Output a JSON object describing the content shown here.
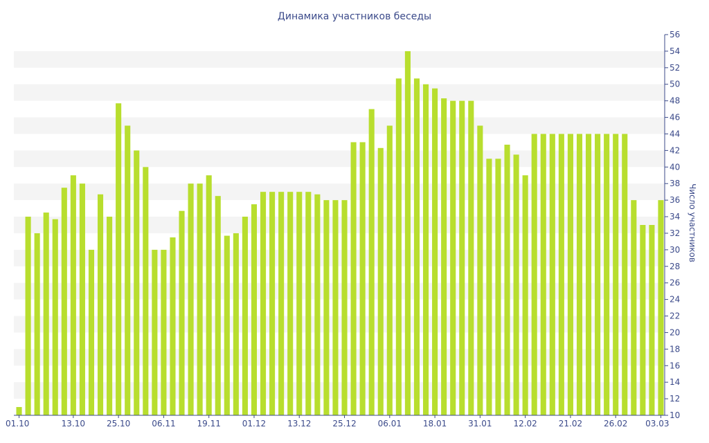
{
  "colors": {
    "bar": "#b8de2e",
    "band": "#f4f4f4",
    "text": "#3b4a8a",
    "axis": "#3b4a8a"
  },
  "chart_data": {
    "type": "bar",
    "title": "Динамика участников беседы",
    "xlabel": "",
    "ylabel": "Число участников",
    "ylim": [
      10,
      56
    ],
    "ytick_step": 2,
    "y_axis_side": "right",
    "grid": "alternating horizontal bands",
    "x_tick_labels": [
      "01.10",
      "13.10",
      "25.10",
      "06.11",
      "19.11",
      "01.12",
      "13.12",
      "25.12",
      "06.01",
      "18.01",
      "31.01",
      "12.02",
      "21.02",
      "26.02",
      "03.03"
    ],
    "x_tick_positions": [
      0,
      6,
      11,
      16,
      21,
      26,
      31,
      36,
      41,
      46,
      51,
      56,
      61,
      66,
      71
    ],
    "values": [
      11,
      34,
      32,
      34.5,
      33.7,
      37.5,
      39,
      38,
      30,
      36.7,
      34,
      47.7,
      45,
      42,
      40,
      30,
      30,
      31.5,
      34.7,
      38,
      38,
      39,
      36.5,
      31.7,
      32,
      34,
      35.5,
      37,
      37,
      37,
      37,
      37,
      37,
      36.7,
      36,
      36,
      36,
      43,
      43,
      47,
      42.3,
      45,
      50.7,
      54,
      50.7,
      50,
      49.5,
      48.3,
      48,
      48,
      48,
      45,
      41,
      41,
      42.7,
      41.5,
      39,
      44,
      44,
      44,
      44,
      44,
      44,
      44,
      44,
      44,
      44,
      44,
      36,
      33,
      33,
      36
    ]
  }
}
